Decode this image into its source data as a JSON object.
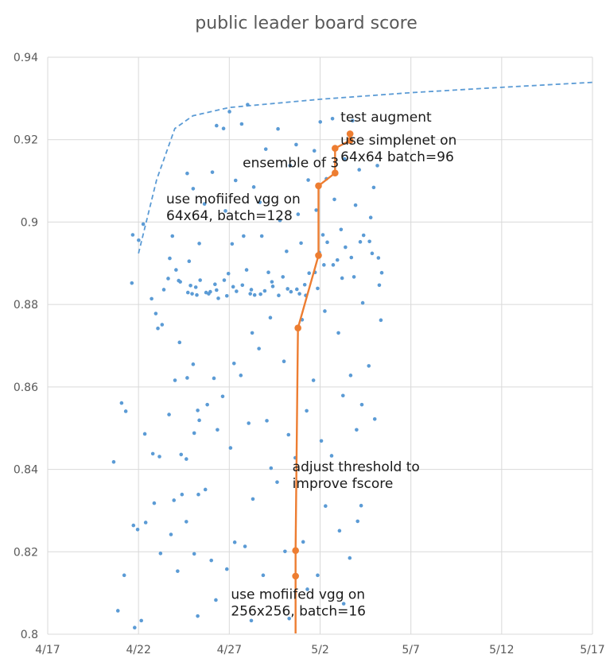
{
  "chart_data": {
    "type": "scatter",
    "title": "public leader board score",
    "xlabel": "",
    "ylabel": "",
    "x_tick_labels": [
      "4/17",
      "4/22",
      "4/27",
      "5/2",
      "5/7",
      "5/12",
      "5/17"
    ],
    "xlim": [
      "4/17",
      "5/17"
    ],
    "y_tick_labels": [
      "0.8",
      "0.82",
      "0.84",
      "0.86",
      "0.88",
      "0.9",
      "0.92",
      "0.94"
    ],
    "ylim": [
      0.8,
      0.94
    ],
    "grid": true,
    "legend": "none",
    "colors": {
      "scatter": "#5b9bd5",
      "trend": "#5b9bd5",
      "progress": "#ed7d31",
      "grid": "#d9d9d9",
      "axis_text": "#595959"
    },
    "series": [
      {
        "type": "scatter",
        "points": [
          [
            "4/21",
            0.8418
          ],
          [
            "4/21",
            0.8561
          ],
          [
            "4/21",
            0.8541
          ],
          [
            "4/21",
            0.8057
          ],
          [
            "4/21",
            0.8143
          ],
          [
            "4/22",
            0.8264
          ],
          [
            "4/22",
            0.8271
          ],
          [
            "4/22",
            0.8254
          ],
          [
            "4/22",
            0.8033
          ],
          [
            "4/22",
            0.8016
          ],
          [
            "4/22",
            0.8486
          ],
          [
            "4/22",
            0.8969
          ],
          [
            "4/22",
            0.8956
          ],
          [
            "4/22",
            0.8995
          ],
          [
            "4/22",
            0.8852
          ],
          [
            "4/23",
            0.8742
          ],
          [
            "4/23",
            0.8751
          ],
          [
            "4/23",
            0.8318
          ],
          [
            "4/23",
            0.8196
          ],
          [
            "4/23",
            0.8814
          ],
          [
            "4/23",
            0.8836
          ],
          [
            "4/23",
            0.8778
          ],
          [
            "4/23",
            0.8431
          ],
          [
            "4/23",
            0.8438
          ],
          [
            "4/24",
            0.8436
          ],
          [
            "4/24",
            0.8533
          ],
          [
            "4/24",
            0.8616
          ],
          [
            "4/24",
            0.8708
          ],
          [
            "4/24",
            0.8863
          ],
          [
            "4/24",
            0.8884
          ],
          [
            "4/24",
            0.8855
          ],
          [
            "4/24",
            0.8966
          ],
          [
            "4/24",
            0.8858
          ],
          [
            "4/24",
            0.8912
          ],
          [
            "4/24",
            0.8339
          ],
          [
            "4/24",
            0.8325
          ],
          [
            "4/24",
            0.8153
          ],
          [
            "4/24",
            0.8242
          ],
          [
            "4/25",
            0.8519
          ],
          [
            "4/25",
            0.8622
          ],
          [
            "4/25",
            0.8655
          ],
          [
            "4/25",
            0.8543
          ],
          [
            "4/25",
            0.8425
          ],
          [
            "4/25",
            0.8488
          ],
          [
            "4/25",
            0.8339
          ],
          [
            "4/25",
            0.8846
          ],
          [
            "4/25",
            0.8823
          ],
          [
            "4/25",
            0.8829
          ],
          [
            "4/25",
            0.8859
          ],
          [
            "4/25",
            0.8826
          ],
          [
            "4/25",
            0.8842
          ],
          [
            "4/25",
            0.8905
          ],
          [
            "4/25",
            0.8948
          ],
          [
            "4/25",
            0.9118
          ],
          [
            "4/25",
            0.9081
          ],
          [
            "4/25",
            0.8044
          ],
          [
            "4/25",
            0.8273
          ],
          [
            "4/25",
            0.8195
          ],
          [
            "4/26",
            0.8835
          ],
          [
            "4/26",
            0.8826
          ],
          [
            "4/26",
            0.8849
          ],
          [
            "4/26",
            0.8829
          ],
          [
            "4/26",
            0.8815
          ],
          [
            "4/26",
            0.8831
          ],
          [
            "4/26",
            0.8621
          ],
          [
            "4/26",
            0.8557
          ],
          [
            "4/26",
            0.8496
          ],
          [
            "4/26",
            0.8351
          ],
          [
            "4/26",
            0.8179
          ],
          [
            "4/26",
            0.8083
          ],
          [
            "4/26",
            0.9044
          ],
          [
            "4/26",
            0.9121
          ],
          [
            "4/26",
            0.9234
          ],
          [
            "4/27",
            0.8821
          ],
          [
            "4/27",
            0.8843
          ],
          [
            "4/27",
            0.8859
          ],
          [
            "4/27",
            0.8832
          ],
          [
            "4/27",
            0.8875
          ],
          [
            "4/27",
            0.8947
          ],
          [
            "4/27",
            0.9027
          ],
          [
            "4/27",
            0.9101
          ],
          [
            "4/27",
            0.9227
          ],
          [
            "4/27",
            0.9268
          ],
          [
            "4/27",
            0.8657
          ],
          [
            "4/27",
            0.8577
          ],
          [
            "4/27",
            0.8452
          ],
          [
            "4/27",
            0.8223
          ],
          [
            "4/27",
            0.8158
          ],
          [
            "4/28",
            0.8836
          ],
          [
            "4/28",
            0.8847
          ],
          [
            "4/28",
            0.8823
          ],
          [
            "4/28",
            0.8884
          ],
          [
            "4/28",
            0.8826
          ],
          [
            "4/28",
            0.8966
          ],
          [
            "4/28",
            0.9085
          ],
          [
            "4/28",
            0.9238
          ],
          [
            "4/28",
            0.9285
          ],
          [
            "4/28",
            0.8731
          ],
          [
            "4/28",
            0.8628
          ],
          [
            "4/28",
            0.8512
          ],
          [
            "4/28",
            0.8328
          ],
          [
            "4/28",
            0.8213
          ],
          [
            "4/28",
            0.8033
          ],
          [
            "4/29",
            0.8825
          ],
          [
            "4/29",
            0.8844
          ],
          [
            "4/29",
            0.8833
          ],
          [
            "4/29",
            0.8878
          ],
          [
            "4/29",
            0.8966
          ],
          [
            "4/29",
            0.8855
          ],
          [
            "4/29",
            0.9048
          ],
          [
            "4/29",
            0.9177
          ],
          [
            "4/29",
            0.8768
          ],
          [
            "4/29",
            0.8693
          ],
          [
            "4/29",
            0.8518
          ],
          [
            "4/29",
            0.8403
          ],
          [
            "4/29",
            0.8143
          ],
          [
            "4/30",
            0.8838
          ],
          [
            "4/30",
            0.8822
          ],
          [
            "4/30",
            0.8831
          ],
          [
            "4/30",
            0.8867
          ],
          [
            "4/30",
            0.8929
          ],
          [
            "4/30",
            0.9004
          ],
          [
            "4/30",
            0.9137
          ],
          [
            "4/30",
            0.9226
          ],
          [
            "4/30",
            0.8662
          ],
          [
            "4/30",
            0.8484
          ],
          [
            "4/30",
            0.8369
          ],
          [
            "4/30",
            0.8201
          ],
          [
            "4/30",
            0.8038
          ],
          [
            "5/1",
            0.8826
          ],
          [
            "5/1",
            0.8822
          ],
          [
            "5/1",
            0.8837
          ],
          [
            "5/1",
            0.8876
          ],
          [
            "5/1",
            0.8949
          ],
          [
            "5/1",
            0.8848
          ],
          [
            "5/1",
            0.9019
          ],
          [
            "5/1",
            0.9102
          ],
          [
            "5/1",
            0.9188
          ],
          [
            "5/1",
            0.8763
          ],
          [
            "5/1",
            0.8542
          ],
          [
            "5/1",
            0.8428
          ],
          [
            "5/1",
            0.8224
          ],
          [
            "5/1",
            0.8109
          ],
          [
            "5/2",
            0.8839
          ],
          [
            "5/2",
            0.8896
          ],
          [
            "5/2",
            0.8878
          ],
          [
            "5/2",
            0.8951
          ],
          [
            "5/2",
            0.8926
          ],
          [
            "5/2",
            0.8969
          ],
          [
            "5/2",
            0.9029
          ],
          [
            "5/2",
            0.9105
          ],
          [
            "5/2",
            0.9173
          ],
          [
            "5/2",
            0.9243
          ],
          [
            "5/2",
            0.8784
          ],
          [
            "5/2",
            0.8616
          ],
          [
            "5/2",
            0.8469
          ],
          [
            "5/2",
            0.8311
          ],
          [
            "5/2",
            0.8143
          ],
          [
            "5/3",
            0.8864
          ],
          [
            "5/3",
            0.8896
          ],
          [
            "5/3",
            0.8939
          ],
          [
            "5/3",
            0.8908
          ],
          [
            "5/3",
            0.8982
          ],
          [
            "5/3",
            0.9055
          ],
          [
            "5/3",
            0.9153
          ],
          [
            "5/3",
            0.9251
          ],
          [
            "5/3",
            0.8731
          ],
          [
            "5/3",
            0.8579
          ],
          [
            "5/3",
            0.8433
          ],
          [
            "5/3",
            0.8251
          ],
          [
            "5/3",
            0.8074
          ],
          [
            "5/4",
            0.8867
          ],
          [
            "5/4",
            0.8952
          ],
          [
            "5/4",
            0.8914
          ],
          [
            "5/4",
            0.8968
          ],
          [
            "5/4",
            0.9041
          ],
          [
            "5/4",
            0.9127
          ],
          [
            "5/4",
            0.9246
          ],
          [
            "5/4",
            0.8804
          ],
          [
            "5/4",
            0.8628
          ],
          [
            "5/4",
            0.8496
          ],
          [
            "5/4",
            0.8312
          ],
          [
            "5/4",
            0.8185
          ],
          [
            "5/4",
            0.8274
          ],
          [
            "5/4",
            0.8557
          ],
          [
            "5/5",
            0.8924
          ],
          [
            "5/5",
            0.8913
          ],
          [
            "5/5",
            0.8953
          ],
          [
            "5/5",
            0.8877
          ],
          [
            "5/5",
            0.9084
          ],
          [
            "5/5",
            0.9137
          ],
          [
            "5/5",
            0.9011
          ],
          [
            "5/5",
            0.8762
          ],
          [
            "5/5",
            0.8651
          ],
          [
            "5/5",
            0.8522
          ],
          [
            "5/5",
            0.8847
          ]
        ]
      },
      {
        "type": "trend",
        "style": "dashed",
        "points": [
          [
            "4/22",
            0.8924
          ],
          [
            "4/23",
            0.9103
          ],
          [
            "4/24",
            0.9227
          ],
          [
            "4/25",
            0.9258
          ],
          [
            "4/27",
            0.9278
          ],
          [
            "5/2",
            0.9298
          ],
          [
            "5/7",
            0.9314
          ],
          [
            "5/12",
            0.9327
          ],
          [
            "5/17",
            0.9339
          ]
        ]
      },
      {
        "type": "line",
        "points": [
          [
            "5/1",
            0.8002
          ],
          [
            "5/1",
            0.8141
          ],
          [
            "5/1",
            0.8203
          ],
          [
            "5/1",
            0.8743
          ],
          [
            "5/2",
            0.8919
          ],
          [
            "5/2",
            0.9088
          ],
          [
            "5/3",
            0.9119
          ],
          [
            "5/3",
            0.9179
          ],
          [
            "5/4",
            0.9198
          ],
          [
            "5/4",
            0.9214
          ]
        ]
      }
    ],
    "annotations": [
      {
        "lines": [
          "test augment"
        ],
        "x": "5/4",
        "y": 0.9244
      },
      {
        "lines": [
          "use simplenet on",
          "64x64 batch=96"
        ],
        "x": "5/4",
        "y": 0.9188
      },
      {
        "lines": [
          "ensemble of 3"
        ],
        "x": "4/28",
        "y": 0.9133
      },
      {
        "lines": [
          "use mofiifed vgg on",
          "64x64, batch=128"
        ],
        "x": "4/23",
        "y": 0.9045
      },
      {
        "lines": [
          "adjust threshold to",
          "improve fscore"
        ],
        "x": "5/1",
        "y": 0.8395
      },
      {
        "lines": [
          "use mofiifed vgg on",
          "256x256, batch=16"
        ],
        "x": "4/27",
        "y": 0.8086
      }
    ]
  }
}
